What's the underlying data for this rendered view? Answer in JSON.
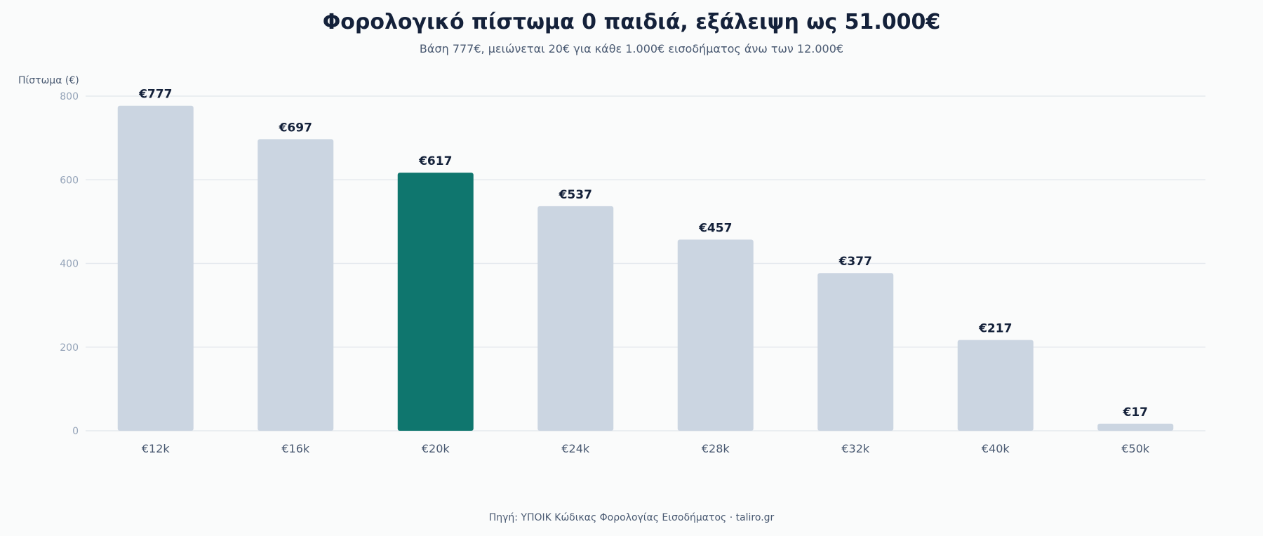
{
  "title": "Φορολογικό πίστωμα 0 παιδιά, εξάλειψη ως 51.000€",
  "subtitle": "Βάση 777€, μειώνεται 20€ για κάθε 1.000€ εισοδήματος άνω των 12.000€",
  "source": "Πηγή: ΥΠΟΙΚ Κώδικας Φορολογίας Εισοδήματος · taliro.gr",
  "colors": {
    "bar": "#cbd5e1",
    "highlight": "#0f766e",
    "grid": "#e5e9ee",
    "tick": "#94a3b8",
    "label": "#14213a",
    "axis_text": "#4a5a72"
  },
  "chart_data": {
    "type": "bar",
    "title": "Φορολογικό πίστωμα 0 παιδιά, εξάλειψη ως 51.000€",
    "subtitle": "Βάση 777€, μειώνεται 20€ για κάθε 1.000€ εισοδήματος άνω των 12.000€",
    "xlabel": "",
    "ylabel": "Πίστωμα (€)",
    "categories": [
      "€12k",
      "€16k",
      "€20k",
      "€24k",
      "€28k",
      "€32k",
      "€40k",
      "€50k"
    ],
    "values": [
      777,
      697,
      617,
      537,
      457,
      377,
      217,
      17
    ],
    "data_labels": [
      "€777",
      "€697",
      "€617",
      "€537",
      "€457",
      "€377",
      "€217",
      "€17"
    ],
    "highlight_category": "€20k",
    "ylim": [
      0,
      800
    ],
    "yticks": [
      0,
      200,
      400,
      600,
      800
    ],
    "grid": true,
    "legend": "none"
  }
}
